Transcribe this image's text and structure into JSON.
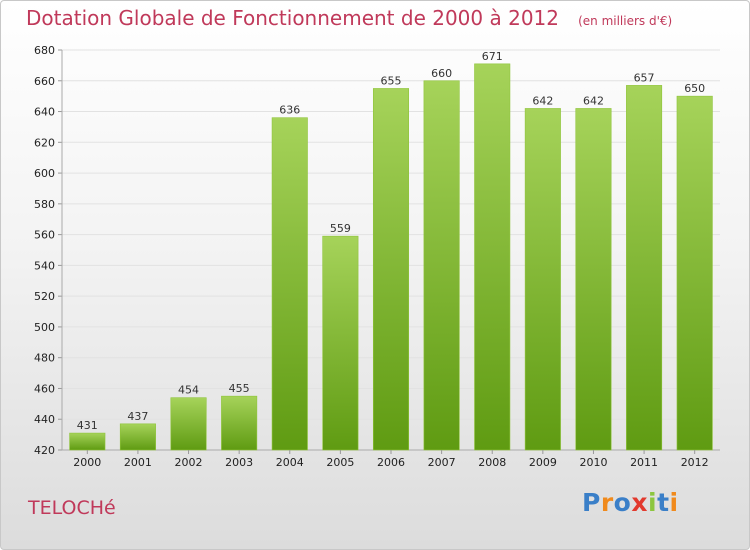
{
  "title": "Dotation Globale de Fonctionnement de 2000 à 2012",
  "unit": "(en milliers d'€)",
  "commune": "TELOCHé",
  "logo": {
    "text": "Proxiti",
    "colors": [
      "#3a7fc8",
      "#f08a1c",
      "#3a7fc8",
      "#e23a2e",
      "#8cc63f",
      "#3a7fc8",
      "#f08a1c"
    ]
  },
  "colors": {
    "bar_light": "#a6d35a",
    "bar_dark": "#5f9b12",
    "title": "#c0395a"
  },
  "chart_data": {
    "type": "bar",
    "categories": [
      "2000",
      "2001",
      "2002",
      "2003",
      "2004",
      "2005",
      "2006",
      "2007",
      "2008",
      "2009",
      "2010",
      "2011",
      "2012"
    ],
    "values": [
      431,
      437,
      454,
      455,
      636,
      559,
      655,
      660,
      671,
      642,
      642,
      657,
      650
    ],
    "value_labels": [
      "431",
      "437",
      "454",
      "455",
      "636",
      "559",
      "655",
      "660",
      "671",
      "642",
      "642",
      "657",
      "650"
    ],
    "ylim": [
      420,
      680
    ],
    "yticks": [
      420,
      440,
      460,
      480,
      500,
      520,
      540,
      560,
      580,
      600,
      620,
      640,
      660,
      680
    ],
    "ytick_labels": [
      "420",
      "440",
      "460",
      "480",
      "500",
      "520",
      "540",
      "560",
      "580",
      "600",
      "620",
      "640",
      "660",
      "680"
    ],
    "title": "Dotation Globale de Fonctionnement de 2000 à 2012",
    "xlabel": "",
    "ylabel": "",
    "grid": true,
    "legend": "none"
  }
}
